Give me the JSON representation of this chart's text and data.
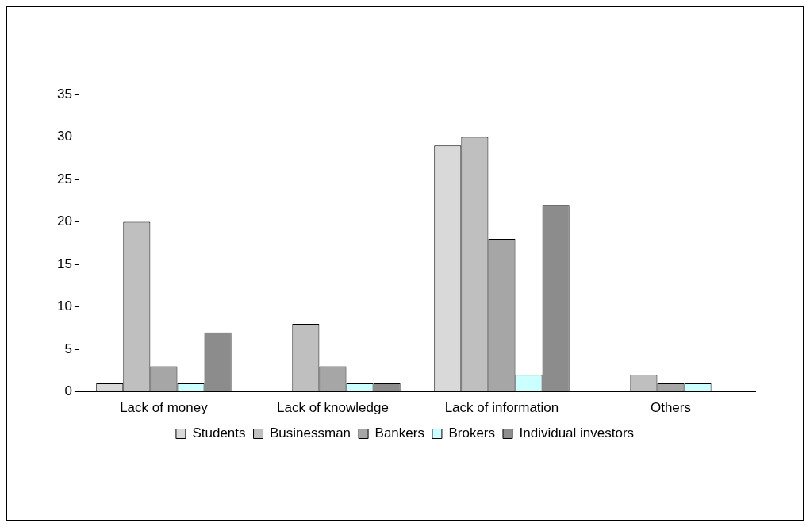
{
  "chart_data": {
    "type": "bar",
    "categories": [
      "Lack of money",
      "Lack of knowledge",
      "Lack of information",
      "Others"
    ],
    "series": [
      {
        "name": "Students",
        "color": "#d9d9d9",
        "values": [
          1,
          0,
          29,
          0
        ]
      },
      {
        "name": "Businessman",
        "color": "#bfbfbf",
        "values": [
          20,
          8,
          30,
          2
        ]
      },
      {
        "name": "Bankers",
        "color": "#a6a6a6",
        "values": [
          3,
          3,
          18,
          1
        ]
      },
      {
        "name": "Brokers",
        "color": "#ccffff",
        "values": [
          1,
          1,
          2,
          1
        ]
      },
      {
        "name": "Individual investors",
        "color": "#8c8c8c",
        "values": [
          7,
          1,
          22,
          0
        ]
      }
    ],
    "ylim": [
      0,
      35
    ],
    "yticks": [
      0,
      5,
      10,
      15,
      20,
      25,
      30,
      35
    ],
    "grid": false,
    "legend": "bottom"
  }
}
